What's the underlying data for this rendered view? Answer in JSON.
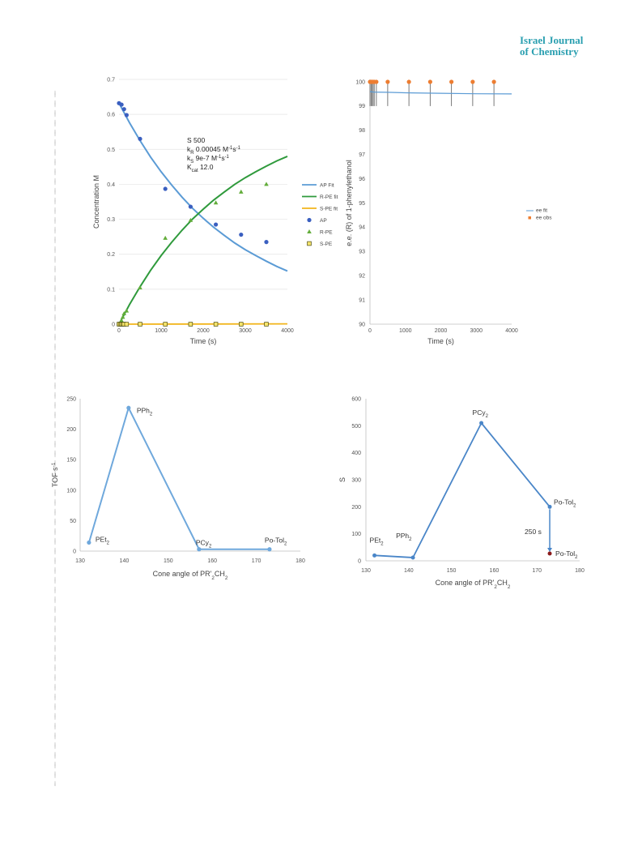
{
  "header": {
    "journal_line1": "Israel Journal",
    "journal_line2": "of Chemistry"
  },
  "colors": {
    "blue": "#4a79c8",
    "green": "#2f9a3c",
    "yellow": "#f2b51c",
    "orange": "#ed7d31",
    "fit_blue": "#5b9bd5",
    "journal": "#2a9fb0"
  },
  "chart_data": [
    {
      "id": "kinetics",
      "type": "scatter",
      "ylabel": "Concentration M",
      "xlabel": "Time (s)",
      "xlim": [
        0,
        4000
      ],
      "ylim": [
        0,
        0.7
      ],
      "xticks": [
        "0",
        "1000",
        "2000",
        "3000",
        "4000"
      ],
      "yticks": [
        "0",
        "0.1",
        "0.2",
        "0.3",
        "0.4",
        "0.5",
        "0.6",
        "0.7"
      ],
      "grid": true,
      "legend_position": "right",
      "annotation": {
        "line1": "S 500",
        "line2_main": "k",
        "line2_sub": "R",
        "line2_rest": " 0.00045 M",
        "line2_sup": "-1",
        "line2_tail": "s",
        "line2_sup2": "-1",
        "line3_main": "k",
        "line3_sub": "S",
        "line3_rest": " 9e-7 M",
        "line3_sup": "-1",
        "line3_tail": "s",
        "line3_sup2": "-1",
        "line4_main": "K",
        "line4_sub": "cat",
        "line4_rest": " 12.0"
      },
      "legend": [
        "AP Fit",
        "R-PE fit",
        "S-PE fit",
        "AP",
        "R-PE",
        "S-PE"
      ],
      "fits": [
        {
          "name": "AP Fit",
          "color": "#5b9bd5",
          "x": [
            0,
            250,
            500,
            750,
            1000,
            1250,
            1500,
            1750,
            2000,
            2250,
            2500,
            2750,
            3000,
            3250,
            3500,
            3750,
            4000
          ],
          "y": [
            0.632,
            0.576,
            0.525,
            0.478,
            0.436,
            0.398,
            0.363,
            0.331,
            0.303,
            0.277,
            0.254,
            0.232,
            0.213,
            0.196,
            0.18,
            0.165,
            0.152
          ]
        },
        {
          "name": "R-PE fit",
          "color": "#2f9a3c",
          "x": [
            0,
            250,
            500,
            750,
            1000,
            1250,
            1500,
            1750,
            2000,
            2250,
            2500,
            2750,
            3000,
            3250,
            3500,
            3750,
            4000
          ],
          "y": [
            0,
            0.056,
            0.107,
            0.154,
            0.196,
            0.234,
            0.269,
            0.301,
            0.329,
            0.355,
            0.378,
            0.4,
            0.419,
            0.436,
            0.452,
            0.467,
            0.48
          ]
        },
        {
          "name": "S-PE fit",
          "color": "#f2b51c",
          "x": [
            0,
            4000
          ],
          "y": [
            0.0,
            0.001
          ]
        }
      ],
      "series": [
        {
          "name": "AP",
          "marker": "circle",
          "color": "#3a5fc0",
          "x": [
            0,
            60,
            120,
            180,
            500,
            1100,
            1700,
            2300,
            2900,
            3500
          ],
          "y": [
            0.632,
            0.628,
            0.615,
            0.598,
            0.53,
            0.387,
            0.336,
            0.285,
            0.256,
            0.235
          ]
        },
        {
          "name": "R-PE",
          "marker": "triangle",
          "color": "#63ad3b",
          "x": [
            0,
            30,
            60,
            90,
            120,
            180,
            500,
            1100,
            1700,
            2300,
            2900,
            3500
          ],
          "y": [
            0.0,
            0.004,
            0.01,
            0.02,
            0.03,
            0.038,
            0.104,
            0.246,
            0.297,
            0.347,
            0.378,
            0.4
          ]
        },
        {
          "name": "S-PE",
          "marker": "square",
          "color": "#e8c21a",
          "x": [
            0,
            30,
            60,
            90,
            120,
            180,
            500,
            1100,
            1700,
            2300,
            2900,
            3500
          ],
          "y": [
            0,
            0,
            0,
            0,
            0,
            0,
            0,
            0,
            0,
            0,
            0,
            0
          ]
        }
      ]
    },
    {
      "id": "ee",
      "type": "scatter",
      "ylabel": "e.e. (R) of 1-phenylethanol",
      "xlabel": "Time (s)",
      "xlim": [
        0,
        4000
      ],
      "ylim": [
        90,
        100
      ],
      "xticks": [
        "0",
        "1000",
        "2000",
        "3000",
        "4000"
      ],
      "yticks": [
        "90",
        "91",
        "92",
        "93",
        "94",
        "95",
        "96",
        "97",
        "98",
        "99",
        "100"
      ],
      "grid": false,
      "legend_position": "right",
      "legend": [
        "ee fit",
        "ee obs"
      ],
      "fit": {
        "name": "ee fit",
        "color": "#5b9bd5",
        "x": [
          0,
          100,
          500,
          1000,
          2000,
          3000,
          4000
        ],
        "y": [
          99.6,
          99.58,
          99.57,
          99.55,
          99.53,
          99.51,
          99.5
        ]
      },
      "series": [
        {
          "name": "ee obs",
          "marker": "circle",
          "color": "#ed7d31",
          "x": [
            0,
            30,
            60,
            90,
            120,
            180,
            500,
            1100,
            1700,
            2300,
            2900,
            3500
          ],
          "y": [
            100,
            100,
            100,
            100,
            100,
            100,
            100,
            100,
            100,
            100,
            100,
            100
          ]
        }
      ]
    },
    {
      "id": "tof",
      "type": "line",
      "ylabel": "TOF s",
      "ylabel_sup": "-1",
      "xlabel": "Cone angle of PR'",
      "xlabel_sub": "2",
      "xlabel_tail": "CH",
      "xlabel_sub2": "2",
      "xlim": [
        130,
        180
      ],
      "ylim": [
        0,
        250
      ],
      "xticks": [
        "130",
        "140",
        "150",
        "160",
        "170",
        "180"
      ],
      "yticks": [
        "0",
        "50",
        "100",
        "150",
        "200",
        "250"
      ],
      "grid": false,
      "series": [
        {
          "name": "",
          "color": "#6fa8dc",
          "x": [
            132,
            141,
            157,
            173
          ],
          "y": [
            14,
            235,
            3,
            3
          ]
        }
      ],
      "labels": [
        {
          "main": "PEt",
          "sub": "2"
        },
        {
          "main": "PPh",
          "sub": "2"
        },
        {
          "main": "PCy",
          "sub": "2"
        },
        {
          "main": "Po-Tol",
          "sub": "2"
        }
      ]
    },
    {
      "id": "selectivity",
      "type": "line",
      "ylabel": "S",
      "xlabel": "Cone angle of PR'",
      "xlabel_sub": "2",
      "xlabel_tail": "CH",
      "xlabel_sub2": "2",
      "xlim": [
        130,
        180
      ],
      "ylim": [
        0,
        600
      ],
      "xticks": [
        "130",
        "140",
        "150",
        "160",
        "170",
        "180"
      ],
      "yticks": [
        "0",
        "100",
        "200",
        "300",
        "400",
        "500",
        "600"
      ],
      "grid": false,
      "series": [
        {
          "name": "",
          "color": "#4a86c8",
          "x": [
            132,
            141,
            157,
            173
          ],
          "y": [
            20,
            12,
            510,
            200
          ]
        }
      ],
      "extra_point": {
        "x": 173,
        "y": 27,
        "color": "#8b1a1a"
      },
      "arrow_label": "250 s",
      "labels": [
        {
          "main": "PEt",
          "sub": "2"
        },
        {
          "main": "PPh",
          "sub": "2"
        },
        {
          "main": "PCy",
          "sub": "2"
        },
        {
          "main": "Po-Tol",
          "sub": "2"
        },
        {
          "main": "Po-Tol",
          "sub": "2"
        }
      ]
    }
  ]
}
